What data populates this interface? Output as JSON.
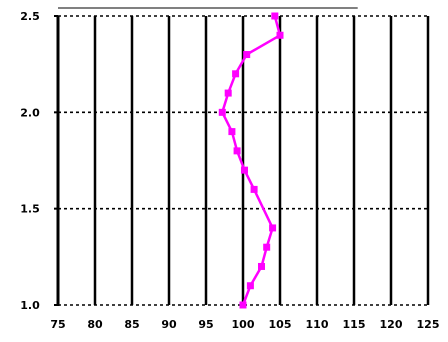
{
  "chart_data": {
    "type": "line",
    "title": "",
    "xlabel": "",
    "ylabel": "",
    "xlim": [
      75,
      125
    ],
    "ylim": [
      1.0,
      2.5
    ],
    "x_ticks": [
      75,
      80,
      85,
      90,
      95,
      100,
      105,
      110,
      115,
      120,
      125
    ],
    "x_tick_labels": [
      "75",
      "80",
      "85",
      "90",
      "95",
      "100",
      "105",
      "110",
      "115",
      "120",
      "125"
    ],
    "y_ticks": [
      1.0,
      1.5,
      2.0,
      2.5
    ],
    "y_tick_labels": [
      "1.0",
      "1.5",
      "2.0",
      "2.5"
    ],
    "grid": {
      "vertical": "solid",
      "horizontal": "dashed"
    },
    "legend": "none",
    "series": [
      {
        "color": "#ff00ff",
        "marker": "square",
        "points": [
          {
            "x": 100.0,
            "y": 1.0
          },
          {
            "x": 101.0,
            "y": 1.1
          },
          {
            "x": 102.5,
            "y": 1.2
          },
          {
            "x": 103.2,
            "y": 1.3
          },
          {
            "x": 104.0,
            "y": 1.4
          },
          {
            "x": 101.5,
            "y": 1.6
          },
          {
            "x": 100.2,
            "y": 1.7
          },
          {
            "x": 99.2,
            "y": 1.8
          },
          {
            "x": 98.5,
            "y": 1.9
          },
          {
            "x": 97.2,
            "y": 2.0
          },
          {
            "x": 98.0,
            "y": 2.1
          },
          {
            "x": 99.0,
            "y": 2.2
          },
          {
            "x": 100.5,
            "y": 2.3
          },
          {
            "x": 105.0,
            "y": 2.4
          },
          {
            "x": 104.3,
            "y": 2.5
          }
        ]
      }
    ]
  }
}
